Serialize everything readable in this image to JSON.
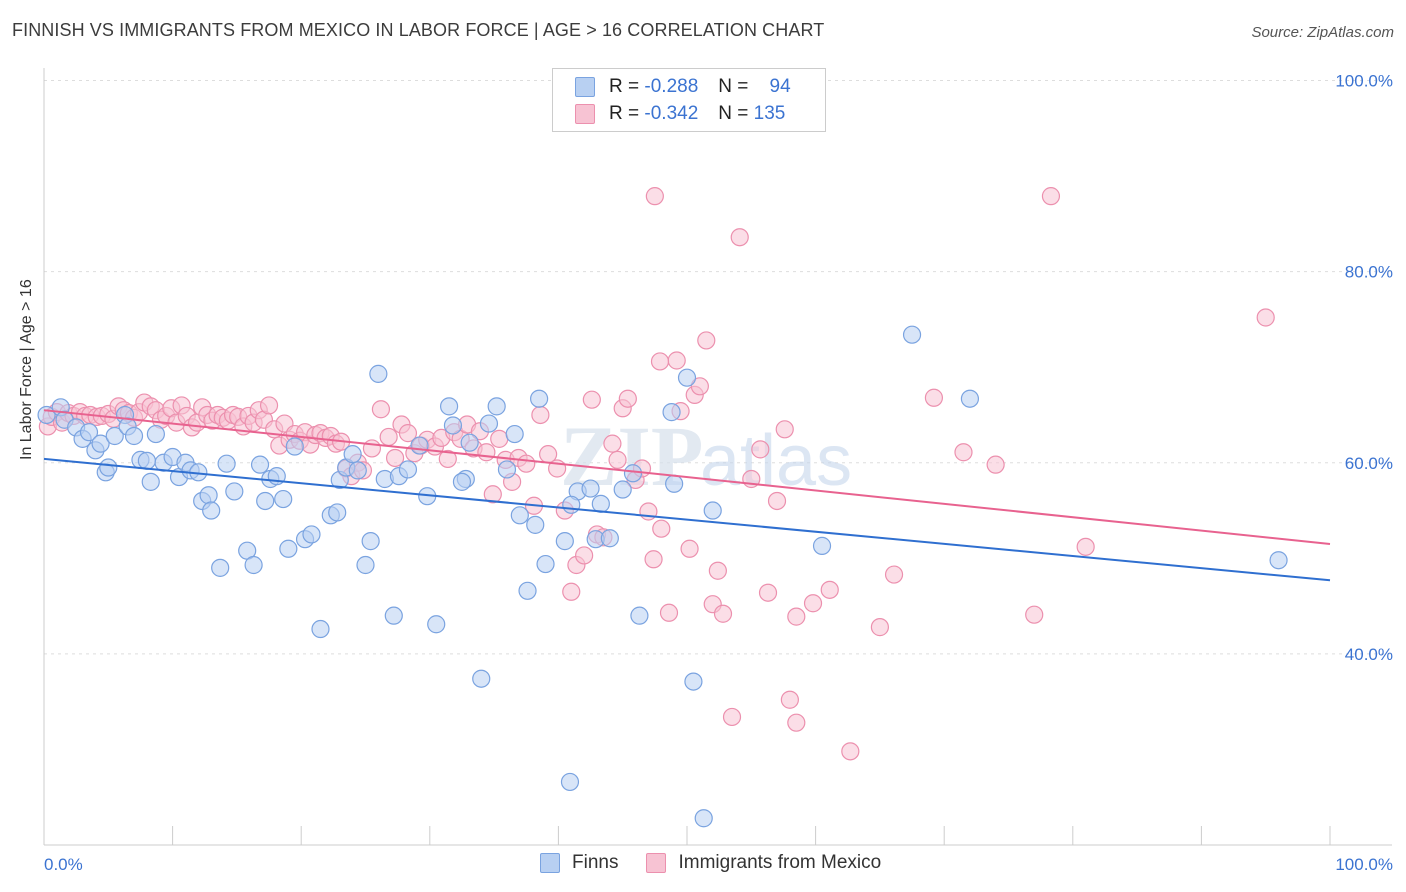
{
  "header": {
    "title": "FINNISH VS IMMIGRANTS FROM MEXICO IN LABOR FORCE | AGE > 16 CORRELATION CHART",
    "source": "Source: ZipAtlas.com"
  },
  "legend_stats": {
    "r_label": "R =",
    "n_label": "N =",
    "finns": {
      "r": "-0.288",
      "n": "94"
    },
    "mexico": {
      "r": "-0.342",
      "n": "135"
    }
  },
  "colors": {
    "finns_fill": "#b8d0f2",
    "finns_stroke": "#7aa3e0",
    "finns_line": "#2f6fd0",
    "mexico_fill": "#f7c3d3",
    "mexico_stroke": "#ec90ae",
    "mexico_line": "#e8628f",
    "grid": "#dddddd",
    "tick_text": "#3b73d1"
  },
  "chart_data": {
    "type": "scatter",
    "title": "FINNISH VS IMMIGRANTS FROM MEXICO IN LABOR FORCE | AGE > 16 CORRELATION CHART",
    "xlabel": "",
    "ylabel": "In Labor Force | Age > 16",
    "xlim": [
      0,
      100
    ],
    "ylim": [
      20,
      100
    ],
    "x_tick_labels": [
      "0.0%",
      "100.0%"
    ],
    "y_ticks": [
      40,
      60,
      80,
      100
    ],
    "y_tick_labels": [
      "40.0%",
      "60.0%",
      "80.0%",
      "100.0%"
    ],
    "grid": "horizontal dashed",
    "legend": "bottom-center",
    "series": [
      {
        "name": "Finns",
        "r": -0.288,
        "n": 94,
        "trend": {
          "x": [
            0,
            100
          ],
          "y": [
            60.4,
            47.7
          ]
        },
        "points": [
          [
            0.2,
            65
          ],
          [
            1.3,
            65.8
          ],
          [
            1.6,
            64.5
          ],
          [
            2.5,
            63.7
          ],
          [
            3,
            62.5
          ],
          [
            3.5,
            63.2
          ],
          [
            4,
            61.3
          ],
          [
            4.4,
            62
          ],
          [
            4.8,
            59
          ],
          [
            5.5,
            62.8
          ],
          [
            6.3,
            65
          ],
          [
            6.5,
            63.8
          ],
          [
            7,
            62.8
          ],
          [
            7.5,
            60.3
          ],
          [
            8,
            60.2
          ],
          [
            8.3,
            58
          ],
          [
            8.7,
            63
          ],
          [
            9.3,
            60
          ],
          [
            10,
            60.6
          ],
          [
            10.5,
            58.5
          ],
          [
            11,
            60
          ],
          [
            11.4,
            59.2
          ],
          [
            12,
            59
          ],
          [
            12.3,
            56
          ],
          [
            12.8,
            56.6
          ],
          [
            13,
            55
          ],
          [
            13.7,
            49
          ],
          [
            14.2,
            59.9
          ],
          [
            14.8,
            57
          ],
          [
            15.8,
            50.8
          ],
          [
            16.3,
            49.3
          ],
          [
            16.8,
            59.8
          ],
          [
            17.2,
            56
          ],
          [
            17.6,
            58.3
          ],
          [
            18.1,
            58.6
          ],
          [
            18.6,
            56.2
          ],
          [
            19,
            51
          ],
          [
            19.5,
            61.7
          ],
          [
            20.3,
            52
          ],
          [
            20.8,
            52.5
          ],
          [
            21.5,
            42.6
          ],
          [
            22.3,
            54.5
          ],
          [
            23,
            58.2
          ],
          [
            23.5,
            59.5
          ],
          [
            24,
            60.9
          ],
          [
            24.4,
            59.2
          ],
          [
            25,
            49.3
          ],
          [
            25.4,
            51.8
          ],
          [
            26,
            69.3
          ],
          [
            26.5,
            58.3
          ],
          [
            27.2,
            44
          ],
          [
            27.6,
            58.6
          ],
          [
            28.3,
            59.3
          ],
          [
            29.2,
            61.8
          ],
          [
            29.8,
            56.5
          ],
          [
            30.5,
            43.1
          ],
          [
            31.5,
            65.9
          ],
          [
            31.8,
            63.9
          ],
          [
            32.8,
            58.3
          ],
          [
            33.1,
            62.1
          ],
          [
            34,
            37.4
          ],
          [
            34.6,
            64.1
          ],
          [
            35.2,
            65.9
          ],
          [
            36,
            59.3
          ],
          [
            36.6,
            63
          ],
          [
            37,
            54.5
          ],
          [
            37.6,
            46.6
          ],
          [
            38.2,
            53.5
          ],
          [
            38.5,
            66.7
          ],
          [
            39,
            49.4
          ],
          [
            40.5,
            51.8
          ],
          [
            40.9,
            26.6
          ],
          [
            41.5,
            57
          ],
          [
            42.5,
            57.3
          ],
          [
            42.9,
            52
          ],
          [
            43.3,
            55.7
          ],
          [
            44,
            52.1
          ],
          [
            45,
            57.2
          ],
          [
            46.3,
            44
          ],
          [
            48.8,
            65.3
          ],
          [
            49,
            57.8
          ],
          [
            50,
            68.9
          ],
          [
            50.5,
            37.1
          ],
          [
            51.3,
            22.8
          ],
          [
            60.5,
            51.3
          ],
          [
            67.5,
            73.4
          ],
          [
            72,
            66.7
          ],
          [
            96,
            49.8
          ],
          [
            5,
            59.5
          ],
          [
            22.8,
            54.8
          ],
          [
            32.5,
            58
          ],
          [
            41,
            55.6
          ],
          [
            45.8,
            58.9
          ],
          [
            52,
            55
          ]
        ]
      },
      {
        "name": "Immigrants from Mexico",
        "r": -0.342,
        "n": 135,
        "trend": {
          "x": [
            0,
            100
          ],
          "y": [
            65.5,
            51.5
          ]
        },
        "points": [
          [
            0.3,
            63.8
          ],
          [
            0.6,
            64.8
          ],
          [
            1,
            65.3
          ],
          [
            1.4,
            64.2
          ],
          [
            1.9,
            65.2
          ],
          [
            2.3,
            64.9
          ],
          [
            2.8,
            65.3
          ],
          [
            3.2,
            64.9
          ],
          [
            3.6,
            65
          ],
          [
            4.1,
            64.8
          ],
          [
            4.5,
            64.9
          ],
          [
            5,
            65.1
          ],
          [
            5.4,
            64.6
          ],
          [
            5.8,
            65.9
          ],
          [
            6.2,
            65.5
          ],
          [
            6.6,
            65.2
          ],
          [
            7,
            64.7
          ],
          [
            7.4,
            65.3
          ],
          [
            7.8,
            66.3
          ],
          [
            8.3,
            65.9
          ],
          [
            8.7,
            65.5
          ],
          [
            9.1,
            64.5
          ],
          [
            9.5,
            64.9
          ],
          [
            9.9,
            65.7
          ],
          [
            10.3,
            64.2
          ],
          [
            10.7,
            66
          ],
          [
            11.1,
            64.9
          ],
          [
            11.5,
            63.7
          ],
          [
            11.9,
            64.2
          ],
          [
            12.3,
            65.8
          ],
          [
            12.7,
            65
          ],
          [
            13.1,
            64.4
          ],
          [
            13.5,
            65
          ],
          [
            13.9,
            64.7
          ],
          [
            14.3,
            64.4
          ],
          [
            14.7,
            65
          ],
          [
            15.1,
            64.8
          ],
          [
            15.5,
            63.8
          ],
          [
            15.9,
            64.9
          ],
          [
            16.3,
            64.2
          ],
          [
            16.7,
            65.5
          ],
          [
            17.1,
            64.5
          ],
          [
            17.5,
            66
          ],
          [
            17.9,
            63.5
          ],
          [
            18.3,
            61.8
          ],
          [
            18.7,
            64.1
          ],
          [
            19.1,
            62.4
          ],
          [
            19.5,
            63
          ],
          [
            19.9,
            62.3
          ],
          [
            20.3,
            63.2
          ],
          [
            20.7,
            61.9
          ],
          [
            21.1,
            62.9
          ],
          [
            21.5,
            63.1
          ],
          [
            21.9,
            62.6
          ],
          [
            22.3,
            62.8
          ],
          [
            22.7,
            62
          ],
          [
            23.1,
            62.2
          ],
          [
            23.5,
            59.4
          ],
          [
            23.9,
            58.6
          ],
          [
            24.4,
            60
          ],
          [
            24.8,
            59.2
          ],
          [
            25.5,
            61.5
          ],
          [
            26.2,
            65.6
          ],
          [
            26.8,
            62.7
          ],
          [
            27.3,
            60.5
          ],
          [
            27.8,
            64
          ],
          [
            28.3,
            63.1
          ],
          [
            28.8,
            61
          ],
          [
            29.3,
            61.8
          ],
          [
            29.8,
            62.4
          ],
          [
            30.4,
            61.7
          ],
          [
            30.9,
            62.6
          ],
          [
            31.4,
            60.4
          ],
          [
            31.9,
            63.2
          ],
          [
            32.4,
            62.5
          ],
          [
            32.9,
            64
          ],
          [
            33.4,
            61.5
          ],
          [
            33.9,
            63.3
          ],
          [
            34.4,
            61.1
          ],
          [
            34.9,
            56.7
          ],
          [
            35.4,
            62.5
          ],
          [
            35.9,
            60.3
          ],
          [
            36.4,
            58
          ],
          [
            36.9,
            60.5
          ],
          [
            37.5,
            59.9
          ],
          [
            38.1,
            55.5
          ],
          [
            38.6,
            65
          ],
          [
            39.2,
            60.9
          ],
          [
            39.9,
            59.4
          ],
          [
            40.5,
            55
          ],
          [
            41,
            46.5
          ],
          [
            41.4,
            49.3
          ],
          [
            42,
            50.3
          ],
          [
            42.6,
            66.6
          ],
          [
            43,
            52.5
          ],
          [
            43.5,
            52.2
          ],
          [
            44.2,
            62
          ],
          [
            44.6,
            60.3
          ],
          [
            45,
            65.7
          ],
          [
            45.4,
            66.7
          ],
          [
            46,
            58.2
          ],
          [
            46.5,
            59.4
          ],
          [
            47,
            54.9
          ],
          [
            47.4,
            49.9
          ],
          [
            48,
            53.1
          ],
          [
            48.6,
            44.3
          ],
          [
            49.2,
            70.7
          ],
          [
            49.5,
            65.4
          ],
          [
            50.2,
            51
          ],
          [
            50.6,
            67.1
          ],
          [
            51,
            68
          ],
          [
            51.5,
            72.8
          ],
          [
            52,
            45.2
          ],
          [
            52.4,
            48.7
          ],
          [
            52.8,
            44.2
          ],
          [
            53.5,
            33.4
          ],
          [
            54.1,
            83.6
          ],
          [
            55,
            58.3
          ],
          [
            55.7,
            61.4
          ],
          [
            56.3,
            46.4
          ],
          [
            57,
            56
          ],
          [
            57.6,
            63.5
          ],
          [
            58,
            35.2
          ],
          [
            58.5,
            32.8
          ],
          [
            59.8,
            45.3
          ],
          [
            61.1,
            46.7
          ],
          [
            62.7,
            29.8
          ],
          [
            65,
            42.8
          ],
          [
            69.2,
            66.8
          ],
          [
            71.5,
            61.1
          ],
          [
            74,
            59.8
          ],
          [
            77,
            44.1
          ],
          [
            78.3,
            87.9
          ],
          [
            81,
            51.2
          ],
          [
            95,
            75.2
          ],
          [
            47.5,
            87.9
          ],
          [
            58.5,
            43.9
          ],
          [
            66.1,
            48.3
          ],
          [
            47.9,
            70.6
          ]
        ]
      }
    ]
  },
  "bottom_legend": {
    "finns": "Finns",
    "mexico": "Immigrants from Mexico"
  }
}
